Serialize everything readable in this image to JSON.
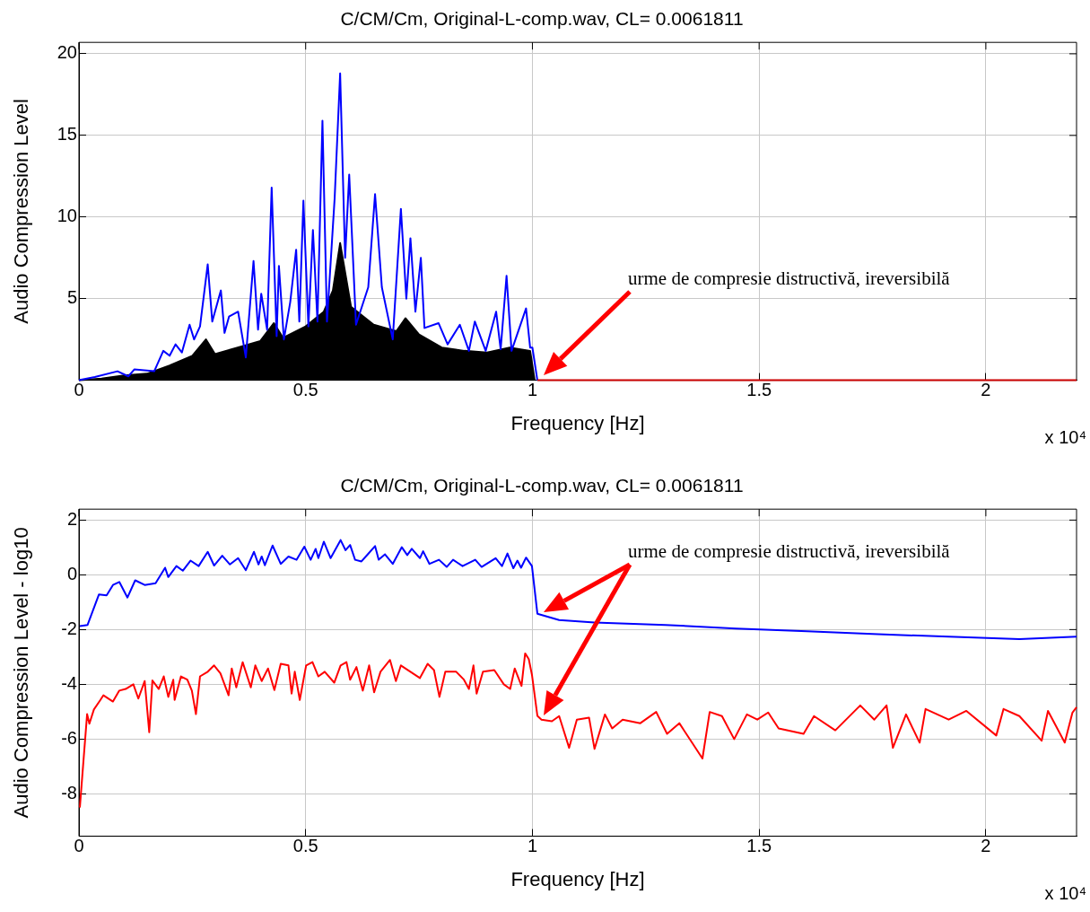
{
  "chart_data": [
    {
      "type": "line",
      "title": "C/CM/Cm, Original-L-comp.wav, CL= 0.0061811",
      "xlabel": "Frequency [Hz]",
      "ylabel": "Audio Compression Level",
      "xlim": [
        0,
        2.2
      ],
      "xticks": [
        0,
        0.5,
        1,
        1.5,
        2
      ],
      "ylim": [
        0,
        20.7
      ],
      "yticks": [
        5,
        10,
        15,
        20
      ],
      "grid": true,
      "legend": false,
      "marker": "none",
      "line_style": "solid",
      "annotations": [
        "x 10⁴",
        "urme de compresie distructivă, ireversibilă"
      ],
      "series": [
        {
          "type": "area",
          "color": "#000000",
          "x": [
            0,
            0.05,
            0.1,
            0.15,
            0.2,
            0.25,
            0.28,
            0.3,
            0.35,
            0.4,
            0.43,
            0.45,
            0.5,
            0.54,
            0.56,
            0.576,
            0.6,
            0.65,
            0.7,
            0.72,
            0.75,
            0.8,
            0.85,
            0.9,
            0.95,
            0.995,
            1.005
          ],
          "values": [
            0,
            0.1,
            0.3,
            0.4,
            0.9,
            1.5,
            2.5,
            1.6,
            2.0,
            2.4,
            3.5,
            2.6,
            3.3,
            4.2,
            5.5,
            8.4,
            4.5,
            3.4,
            3.0,
            3.8,
            2.8,
            2.0,
            1.8,
            1.7,
            2.0,
            1.8,
            0
          ]
        },
        {
          "type": "line",
          "color": "#0000ff",
          "x": [
            0,
            0.035,
            0.085,
            0.109,
            0.122,
            0.166,
            0.186,
            0.2,
            0.213,
            0.227,
            0.244,
            0.254,
            0.267,
            0.284,
            0.294,
            0.313,
            0.321,
            0.331,
            0.351,
            0.368,
            0.385,
            0.395,
            0.402,
            0.415,
            0.425,
            0.436,
            0.441,
            0.452,
            0.466,
            0.479,
            0.486,
            0.495,
            0.506,
            0.516,
            0.526,
            0.537,
            0.547,
            0.564,
            0.576,
            0.587,
            0.596,
            0.611,
            0.638,
            0.653,
            0.668,
            0.692,
            0.71,
            0.722,
            0.731,
            0.742,
            0.754,
            0.762,
            0.793,
            0.813,
            0.84,
            0.86,
            0.873,
            0.897,
            0.92,
            0.93,
            0.943,
            0.954,
            0.986,
            0.995,
            1.0,
            1.011
          ],
          "values": [
            0,
            0.2,
            0.55,
            0.24,
            0.66,
            0.55,
            1.8,
            1.5,
            2.2,
            1.7,
            3.4,
            2.5,
            3.3,
            7.1,
            3.6,
            5.5,
            2.9,
            3.9,
            4.2,
            1.4,
            7.3,
            3.1,
            5.3,
            3.1,
            11.8,
            2.7,
            7.0,
            2.5,
            4.8,
            8.0,
            3.6,
            11.0,
            3.3,
            9.2,
            3.6,
            15.9,
            3.6,
            11.2,
            18.8,
            7.5,
            12.6,
            3.4,
            5.7,
            11.4,
            5.7,
            2.5,
            10.5,
            5.0,
            8.7,
            4.2,
            7.5,
            3.2,
            3.5,
            2.2,
            3.4,
            1.8,
            3.6,
            1.8,
            4.2,
            1.9,
            6.4,
            1.8,
            4.4,
            2.0,
            2.0,
            0
          ]
        },
        {
          "type": "line",
          "color": "#cc0000",
          "x": [
            1.011,
            2.2
          ],
          "values": [
            0,
            0
          ]
        }
      ]
    },
    {
      "type": "line",
      "title": "C/CM/Cm, Original-L-comp.wav, CL= 0.0061811",
      "xlabel": "Frequency [Hz]",
      "ylabel": "Audio Compression Level - log10",
      "xlim": [
        0,
        2.2
      ],
      "xticks": [
        0,
        0.5,
        1,
        1.5,
        2
      ],
      "ylim": [
        -9.55,
        2.4
      ],
      "yticks": [
        -8,
        -6,
        -4,
        -2,
        0,
        2
      ],
      "grid": true,
      "legend": false,
      "marker": "none",
      "line_style": "solid",
      "annotations": [
        "x 10⁴",
        "urme de compresie distructivă, ireversibilă"
      ],
      "series": [
        {
          "color": "#0000ff",
          "x": [
            0.002,
            0.019,
            0.044,
            0.061,
            0.075,
            0.089,
            0.107,
            0.124,
            0.145,
            0.169,
            0.19,
            0.197,
            0.215,
            0.229,
            0.246,
            0.264,
            0.284,
            0.298,
            0.316,
            0.333,
            0.351,
            0.368,
            0.386,
            0.396,
            0.403,
            0.41,
            0.427,
            0.445,
            0.462,
            0.48,
            0.497,
            0.511,
            0.522,
            0.528,
            0.54,
            0.555,
            0.577,
            0.588,
            0.598,
            0.609,
            0.623,
            0.637,
            0.653,
            0.661,
            0.675,
            0.692,
            0.712,
            0.724,
            0.734,
            0.752,
            0.759,
            0.773,
            0.794,
            0.811,
            0.825,
            0.846,
            0.874,
            0.888,
            0.919,
            0.933,
            0.945,
            0.958,
            0.967,
            0.975,
            0.986,
            0.999,
            1.011,
            1.059,
            1.137,
            1.293,
            1.449,
            1.606,
            1.762,
            1.918,
            2.074,
            2.2
          ],
          "values": [
            -1.87,
            -1.83,
            -0.72,
            -0.75,
            -0.37,
            -0.26,
            -0.83,
            -0.2,
            -0.37,
            -0.31,
            0.26,
            -0.08,
            0.32,
            0.15,
            0.52,
            0.32,
            0.84,
            0.34,
            0.7,
            0.38,
            0.61,
            0.17,
            0.84,
            0.38,
            0.67,
            0.35,
            1.07,
            0.4,
            0.67,
            0.55,
            1.03,
            0.55,
            0.95,
            0.61,
            1.21,
            0.61,
            1.27,
            0.9,
            1.09,
            0.55,
            0.49,
            0.75,
            1.05,
            0.55,
            0.75,
            0.4,
            1.01,
            0.72,
            0.95,
            0.61,
            0.86,
            0.4,
            0.55,
            0.29,
            0.55,
            0.32,
            0.55,
            0.29,
            0.61,
            0.32,
            0.78,
            0.24,
            0.52,
            0.26,
            0.63,
            0.32,
            -1.42,
            -1.65,
            -1.74,
            -1.83,
            -1.96,
            -2.06,
            -2.17,
            -2.26,
            -2.35,
            -2.26
          ]
        },
        {
          "color": "#ff0000",
          "x": [
            0.002,
            0.009,
            0.018,
            0.023,
            0.033,
            0.047,
            0.054,
            0.075,
            0.089,
            0.103,
            0.12,
            0.131,
            0.145,
            0.155,
            0.162,
            0.176,
            0.187,
            0.197,
            0.208,
            0.211,
            0.225,
            0.239,
            0.249,
            0.258,
            0.267,
            0.284,
            0.298,
            0.312,
            0.33,
            0.337,
            0.347,
            0.361,
            0.379,
            0.389,
            0.403,
            0.417,
            0.431,
            0.445,
            0.462,
            0.469,
            0.476,
            0.487,
            0.501,
            0.515,
            0.528,
            0.542,
            0.563,
            0.577,
            0.59,
            0.598,
            0.612,
            0.626,
            0.64,
            0.651,
            0.665,
            0.686,
            0.699,
            0.71,
            0.731,
            0.752,
            0.769,
            0.783,
            0.795,
            0.808,
            0.832,
            0.849,
            0.86,
            0.87,
            0.877,
            0.891,
            0.916,
            0.937,
            0.951,
            0.961,
            0.976,
            0.984,
            0.992,
            0.999,
            1.011,
            1.02,
            1.043,
            1.059,
            1.081,
            1.098,
            1.125,
            1.137,
            1.16,
            1.176,
            1.199,
            1.238,
            1.273,
            1.297,
            1.324,
            1.352,
            1.375,
            1.391,
            1.418,
            1.445,
            1.473,
            1.496,
            1.52,
            1.543,
            1.598,
            1.621,
            1.668,
            1.723,
            1.754,
            1.781,
            1.795,
            1.824,
            1.854,
            1.867,
            1.918,
            1.957,
            2.023,
            2.039,
            2.074,
            2.123,
            2.137,
            2.174,
            2.191,
            2.2
          ],
          "values": [
            -8.5,
            -7.0,
            -5.09,
            -5.44,
            -4.92,
            -4.58,
            -4.4,
            -4.63,
            -4.23,
            -4.17,
            -4.0,
            -4.52,
            -3.88,
            -5.75,
            -3.86,
            -4.17,
            -3.71,
            -4.46,
            -3.83,
            -4.57,
            -3.71,
            -3.83,
            -4.23,
            -5.09,
            -3.71,
            -3.54,
            -3.31,
            -3.6,
            -4.4,
            -3.42,
            -4.11,
            -3.19,
            -4.11,
            -3.31,
            -3.88,
            -3.42,
            -4.21,
            -3.25,
            -3.31,
            -4.34,
            -3.54,
            -4.57,
            -3.31,
            -3.19,
            -3.71,
            -3.54,
            -3.94,
            -3.31,
            -3.19,
            -3.83,
            -3.37,
            -4.23,
            -3.31,
            -4.29,
            -3.54,
            -3.11,
            -3.88,
            -3.31,
            -3.54,
            -3.77,
            -3.25,
            -3.48,
            -4.46,
            -3.54,
            -3.54,
            -3.83,
            -4.17,
            -3.31,
            -4.34,
            -3.54,
            -3.48,
            -4.0,
            -4.17,
            -3.42,
            -4.06,
            -2.87,
            -3.08,
            -3.65,
            -5.15,
            -5.29,
            -5.35,
            -5.16,
            -6.32,
            -5.29,
            -5.22,
            -6.36,
            -5.1,
            -5.61,
            -5.29,
            -5.42,
            -5.01,
            -5.81,
            -5.42,
            -6.13,
            -6.71,
            -5.01,
            -5.16,
            -6.0,
            -5.1,
            -5.29,
            -5.03,
            -5.61,
            -5.81,
            -5.16,
            -5.68,
            -4.77,
            -5.29,
            -4.77,
            -6.32,
            -5.1,
            -6.13,
            -4.9,
            -5.29,
            -4.97,
            -5.87,
            -4.9,
            -5.16,
            -6.06,
            -4.97,
            -6.13,
            -5.03,
            -4.84
          ]
        }
      ]
    }
  ]
}
